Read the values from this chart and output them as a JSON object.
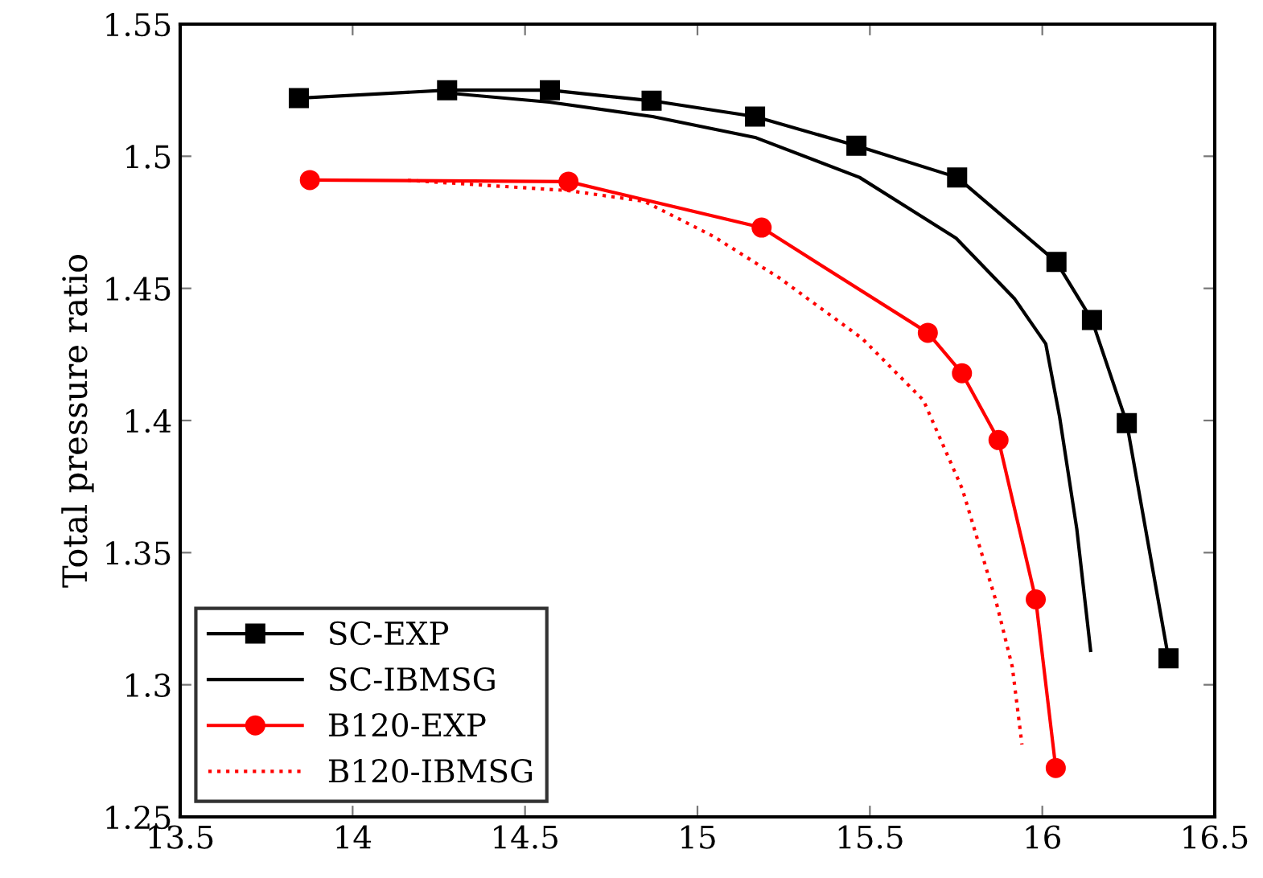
{
  "chart_data": {
    "type": "line",
    "ylabel": "Total pressure ratio",
    "xlim": [
      13.5,
      16.5
    ],
    "xticks": [
      13.5,
      14,
      14.5,
      15,
      15.5,
      16,
      16.5
    ],
    "ylim": [
      1.25,
      1.55
    ],
    "yticks": [
      1.25,
      1.3,
      1.35,
      1.4,
      1.45,
      1.5,
      1.55
    ],
    "grid": false,
    "legend": "bottom left",
    "series": [
      {
        "name": "SC-EXP",
        "color": "#000000",
        "marker": "square",
        "line_style": "solid",
        "x": [
          13.844,
          14.274,
          14.572,
          14.867,
          15.167,
          15.461,
          15.753,
          16.041,
          16.144,
          16.245,
          16.366
        ],
        "values": [
          1.522,
          1.525,
          1.525,
          1.521,
          1.515,
          1.504,
          1.492,
          1.46,
          1.438,
          1.399,
          1.31
        ]
      },
      {
        "name": "SC-IBMSG",
        "color": "#000000",
        "marker": "none",
        "line_style": "solid",
        "x": [
          14.27,
          14.57,
          14.87,
          15.17,
          15.47,
          15.75,
          15.92,
          16.01,
          16.05,
          16.1,
          16.14
        ],
        "values": [
          1.524,
          1.5205,
          1.515,
          1.507,
          1.492,
          1.469,
          1.446,
          1.429,
          1.4015,
          1.359,
          1.313
        ]
      },
      {
        "name": "B120-EXP",
        "color": "#ff0000",
        "marker": "circle",
        "line_style": "solid",
        "x": [
          13.876,
          14.626,
          15.186,
          15.668,
          15.767,
          15.873,
          15.981,
          16.039
        ],
        "values": [
          1.491,
          1.4904,
          1.473,
          1.4332,
          1.4179,
          1.3926,
          1.3323,
          1.2685
        ]
      },
      {
        "name": "B120-IBMSG",
        "color": "#ff0000",
        "marker": "none",
        "line_style": "dotted",
        "x": [
          14.16,
          14.626,
          14.845,
          15.046,
          15.237,
          15.478,
          15.655,
          15.768,
          15.865,
          15.913,
          15.941
        ],
        "values": [
          1.4909,
          1.487,
          1.483,
          1.4697,
          1.454,
          1.431,
          1.4077,
          1.3741,
          1.332,
          1.3068,
          1.2774
        ]
      }
    ]
  }
}
